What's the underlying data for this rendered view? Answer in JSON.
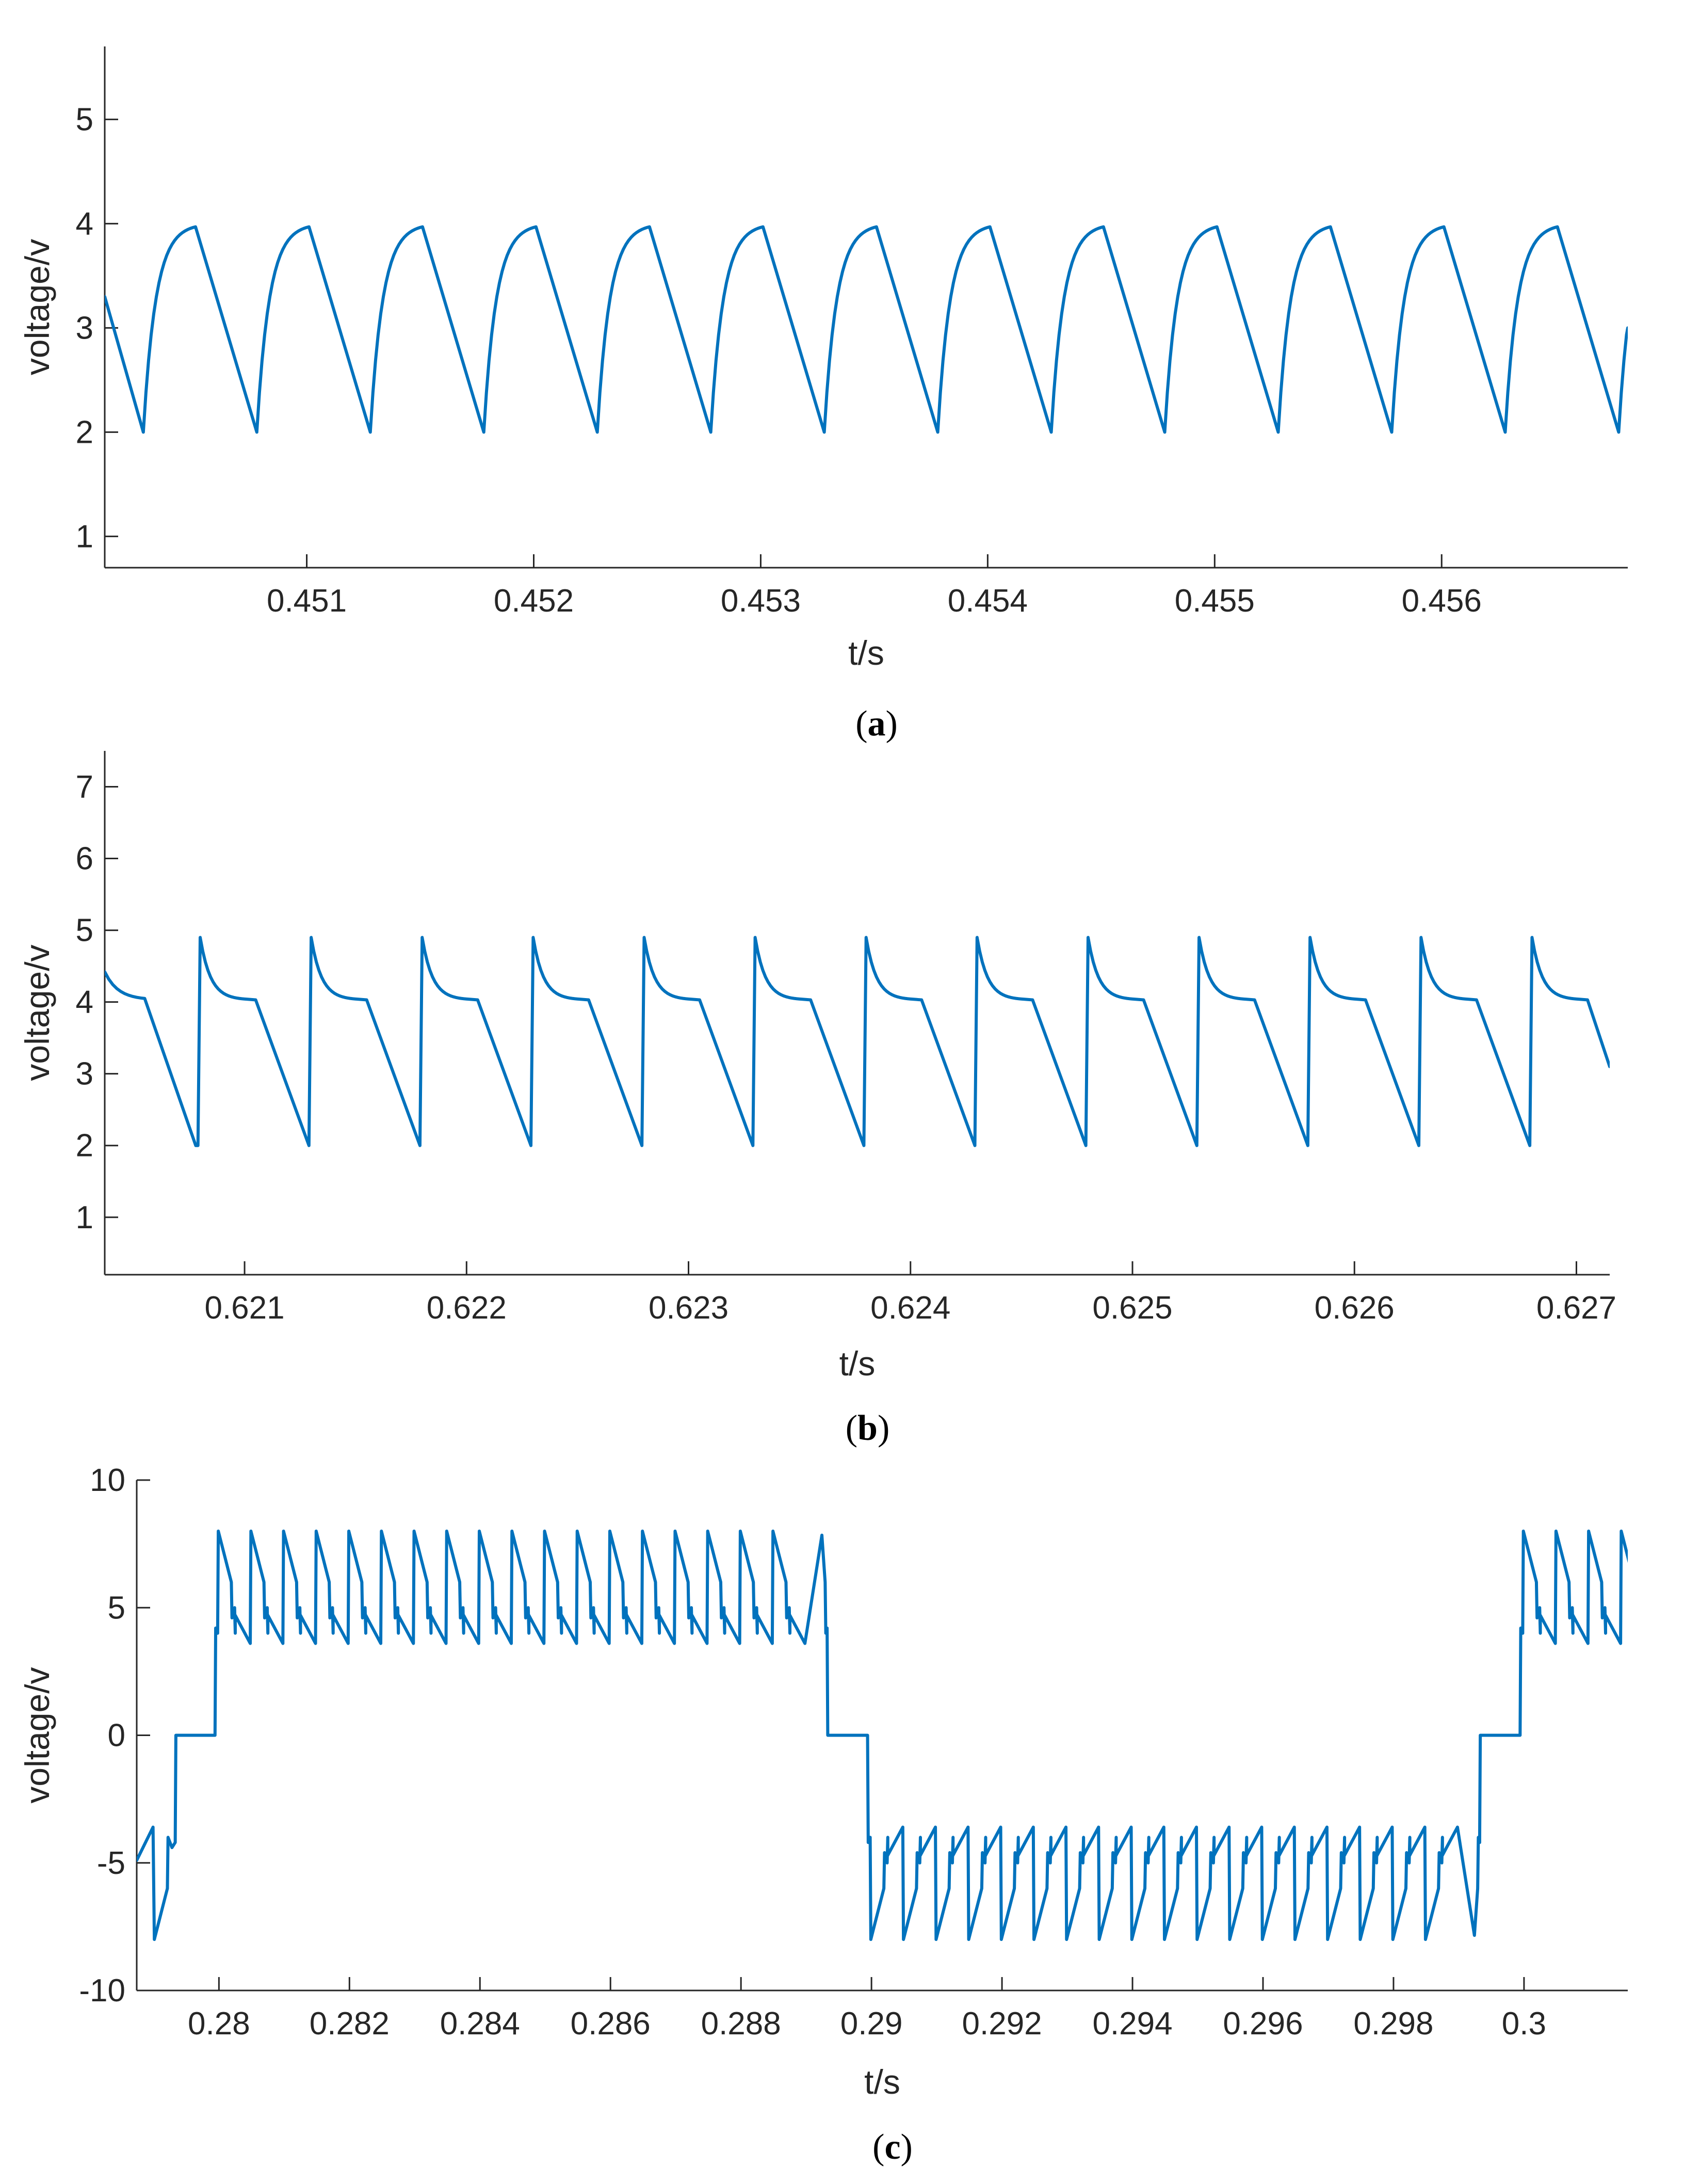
{
  "colors": {
    "series": "#0072BD",
    "axis": "#262626"
  },
  "chart_data": [
    {
      "type": "line",
      "panel": "a",
      "caption": {
        "open": "(",
        "letter": "a",
        "close": ")"
      },
      "xlabel": "t/s",
      "ylabel": "voltage/v",
      "xlim": [
        0.45011,
        0.45682
      ],
      "ylim": [
        0.7,
        5.7
      ],
      "xticks": [
        0.451,
        0.452,
        0.453,
        0.454,
        0.455,
        0.456
      ],
      "xtick_labels": [
        "0.451",
        "0.452",
        "0.453",
        "0.454",
        "0.455",
        "0.456"
      ],
      "yticks": [
        1,
        2,
        3,
        4,
        5
      ],
      "ytick_labels": [
        "1",
        "2",
        "3",
        "4",
        "5"
      ],
      "series": [
        {
          "waveform": "periodic sawtooth: linear fall 3.97 V to 2.0 V, exponential rise back to 3.97 V",
          "period": 0.0005,
          "min": 2.0,
          "max": 3.97,
          "first_trough": 0.45028,
          "rise_duration": 0.00023,
          "x_start": 0.45011,
          "y_start": 3.3,
          "x_end": 0.45682,
          "y_end": 3.0
        }
      ]
    },
    {
      "type": "line",
      "panel": "b",
      "caption": {
        "open": "(",
        "letter": "b",
        "close": ")"
      },
      "xlabel": "t/s",
      "ylabel": "voltage/v",
      "xlim": [
        0.62037,
        0.62715
      ],
      "ylim": [
        0.2,
        7.5
      ],
      "xticks": [
        0.621,
        0.622,
        0.623,
        0.624,
        0.625,
        0.626,
        0.627
      ],
      "xtick_labels": [
        "0.621",
        "0.622",
        "0.623",
        "0.624",
        "0.625",
        "0.626",
        "0.627"
      ],
      "yticks": [
        1,
        2,
        3,
        4,
        5,
        6,
        7
      ],
      "ytick_labels": [
        "1",
        "2",
        "3",
        "4",
        "5",
        "6",
        "7"
      ],
      "series": [
        {
          "waveform": "periodic: vertical jump 2.0 V to 4.9 V, exponential decay to 4.03 V, plateau, linear fall to 2.0 V",
          "period": 0.0005,
          "min": 2.0,
          "peak": 4.9,
          "plateau": 4.03,
          "first_jump": 0.62079,
          "plateau_end_offset": 0.00026,
          "x_start": 0.62037,
          "y_start": 4.42,
          "x_end": 0.62715,
          "y_end": 3.1
        }
      ]
    },
    {
      "type": "line",
      "panel": "c",
      "caption": {
        "open": "(",
        "letter": "c",
        "close": ")"
      },
      "xlabel": "t/s",
      "ylabel": "voltage/v",
      "xlim": [
        0.27874,
        0.30159
      ],
      "ylim": [
        -10,
        10
      ],
      "xticks": [
        0.28,
        0.282,
        0.284,
        0.286,
        0.288,
        0.29,
        0.292,
        0.294,
        0.296,
        0.298,
        0.3
      ],
      "xtick_labels": [
        "0.28",
        "0.282",
        "0.284",
        "0.286",
        "0.288",
        "0.29",
        "0.292",
        "0.294",
        "0.296",
        "0.298",
        "0.3"
      ],
      "yticks": [
        -10,
        -5,
        0,
        5,
        10
      ],
      "ytick_labels": [
        "-10",
        "-5",
        "0",
        "5",
        "10"
      ],
      "series": [
        {
          "waveform": "bipolar stepped output: zero level, steps to ±4.2 V, then switching sawtooth between ±8.0 V and ±3.6 V",
          "zero_intervals": [
            [
              0.27933,
              0.27994
            ],
            [
              0.28932,
              0.28994
            ],
            [
              0.29932,
              0.29994
            ]
          ],
          "positive_interval": [
            0.27994,
            0.28932
          ],
          "negative_interval": [
            0.28994,
            0.29932
          ],
          "positive_interval_2": [
            0.29994,
            0.30159
          ],
          "step_level": 4.2,
          "peak": 8.0,
          "mid_level": 6.0,
          "valley": 3.6,
          "sub_period": 0.0005
        }
      ]
    }
  ]
}
